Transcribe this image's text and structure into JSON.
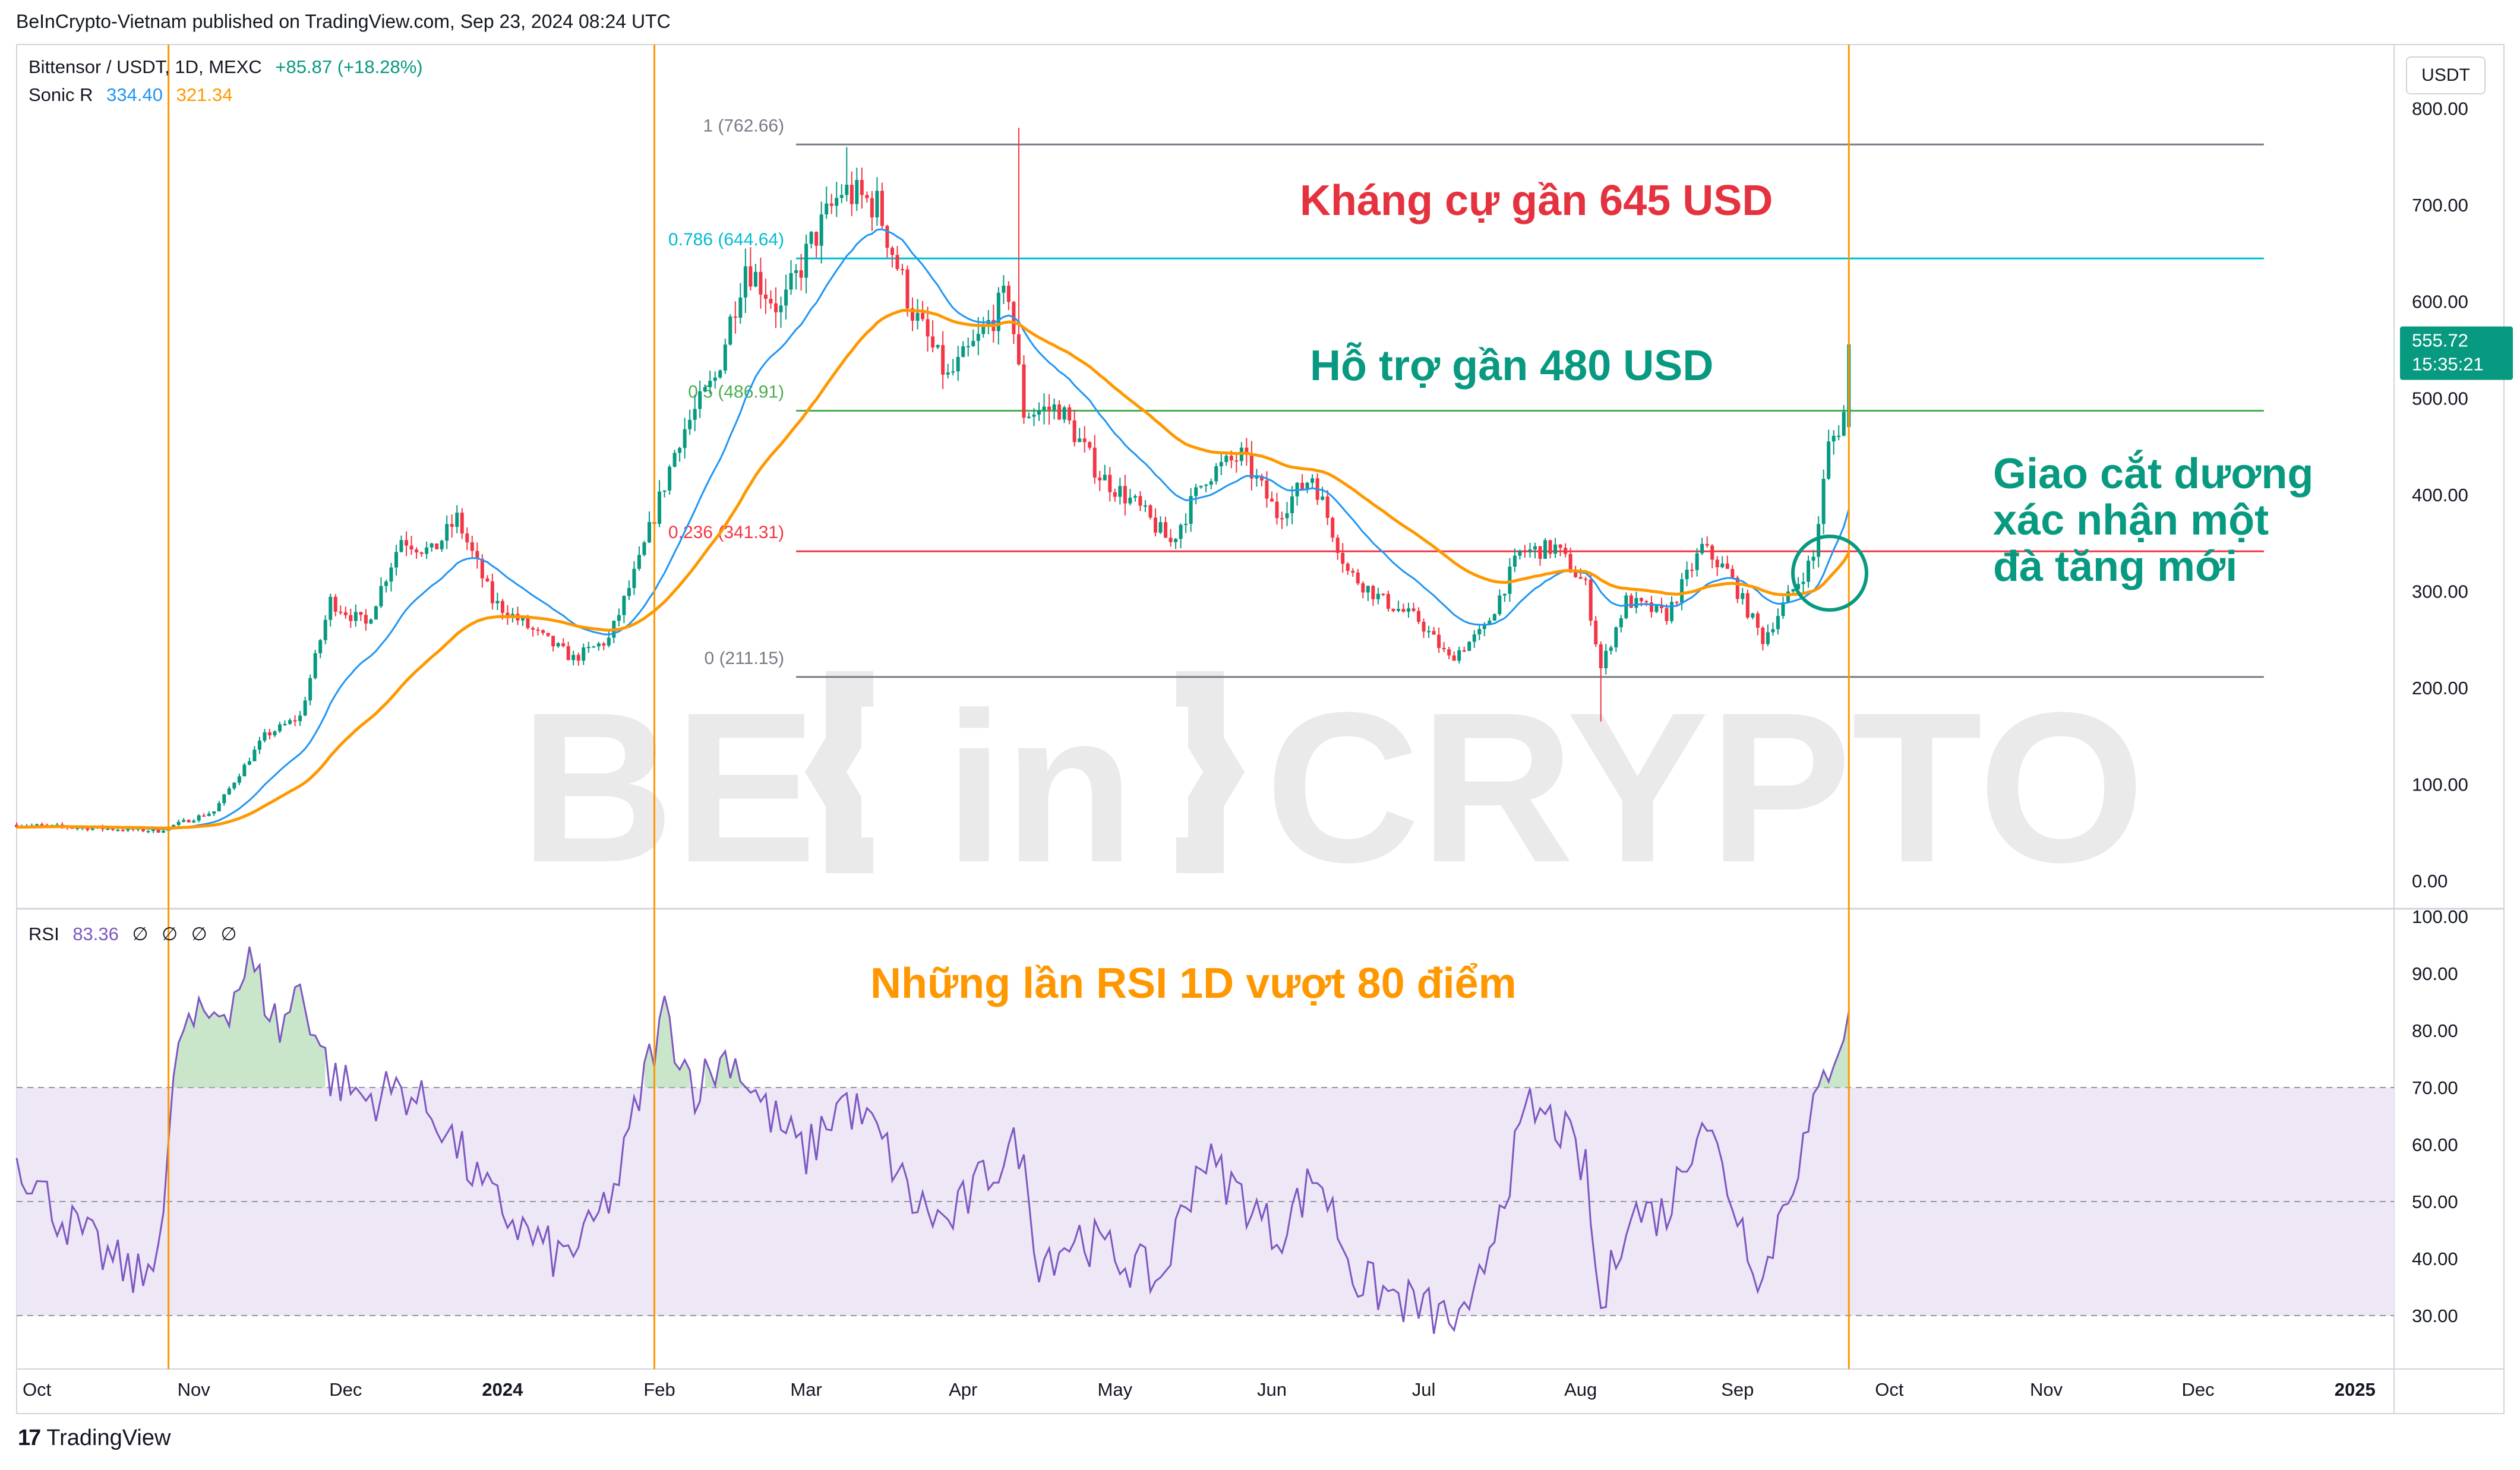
{
  "header": {
    "published": "BeInCrypto-Vietnam published on TradingView.com, Sep 23, 2024 08:24 UTC"
  },
  "legend": {
    "symbol": "Bittensor / USDT, 1D, MEXC",
    "change": "+85.87 (+18.28%)",
    "indicator_name": "Sonic R",
    "indicator_value_1": "334.40",
    "indicator_value_2": "321.34",
    "rsi_name": "RSI",
    "rsi_value": "83.36",
    "rsi_extras": [
      "∅",
      "∅",
      "∅",
      "∅"
    ]
  },
  "watermark": {
    "left": "BE",
    "middle": "in",
    "right": "CRYPTO"
  },
  "price_axis": {
    "unit": "USDT",
    "ticks": [
      "800.00",
      "700.00",
      "600.00",
      "500.00",
      "400.00",
      "300.00",
      "200.00",
      "100.00",
      "0.00"
    ],
    "last_price": "555.72",
    "countdown": "15:35:21"
  },
  "rsi_axis": {
    "ticks": [
      "100.00",
      "90.00",
      "80.00",
      "70.00",
      "60.00",
      "50.00",
      "40.00",
      "30.00"
    ]
  },
  "time_axis": {
    "labels": [
      {
        "text": "Oct",
        "bold": false
      },
      {
        "text": "Nov",
        "bold": false
      },
      {
        "text": "Dec",
        "bold": false
      },
      {
        "text": "2024",
        "bold": true
      },
      {
        "text": "Feb",
        "bold": false
      },
      {
        "text": "Mar",
        "bold": false
      },
      {
        "text": "Apr",
        "bold": false
      },
      {
        "text": "May",
        "bold": false
      },
      {
        "text": "Jun",
        "bold": false
      },
      {
        "text": "Jul",
        "bold": false
      },
      {
        "text": "Aug",
        "bold": false
      },
      {
        "text": "Sep",
        "bold": false
      },
      {
        "text": "Oct",
        "bold": false
      },
      {
        "text": "Nov",
        "bold": false
      },
      {
        "text": "Dec",
        "bold": false
      },
      {
        "text": "2025",
        "bold": true
      }
    ]
  },
  "annotations": {
    "resistance": "Kháng cự gần 645 USD",
    "support": "Hỗ trợ gần 480 USD",
    "cross_line1": "Giao cắt dương",
    "cross_line2": "xác nhận một",
    "cross_line3": "đà tăng mới",
    "rsi_note": "Những lần RSI 1D vượt 80 điểm"
  },
  "footer": {
    "brand": "TradingView"
  },
  "colors": {
    "up": "#089981",
    "down": "#f23645",
    "ema_fast": "#2196f3",
    "ema_slow": "#ff9800",
    "rsi_line": "#7e57c2",
    "rsi_band": "#ede7f6",
    "fib_0786": "#00bcd4",
    "fib_05": "#4caf50",
    "fib_0236": "#f23645",
    "fib_gray": "#787b86",
    "resistance_text": "#e5323f",
    "support_text": "#089981",
    "rsi_note_text": "#ff9800",
    "vline": "#ff9800"
  },
  "chart_data": {
    "type": "candlestick",
    "title": "Bittensor / USDT, 1D, MEXC",
    "ylim": [
      0,
      830
    ],
    "rsi_ylim": [
      25,
      100
    ],
    "rsi_bands": [
      30,
      70
    ],
    "rsi_mid": 50,
    "fib_levels": [
      {
        "label": "1 (762.66)",
        "value": 762.66,
        "color": "#787b86"
      },
      {
        "label": "0.786 (644.64)",
        "value": 644.64,
        "color": "#00bcd4"
      },
      {
        "label": "0.5 (486.91)",
        "value": 486.91,
        "color": "#4caf50"
      },
      {
        "label": "0.236 (341.31)",
        "value": 341.31,
        "color": "#f23645"
      },
      {
        "label": "0 (211.15)",
        "value": 211.15,
        "color": "#787b86"
      }
    ],
    "anchor_dates": [
      "2023-10-27",
      "2024-01-31",
      "2024-09-23"
    ],
    "price_waypoints": [
      [
        "2023-09-27",
        58
      ],
      [
        "2023-10-10",
        55
      ],
      [
        "2023-10-25",
        52
      ],
      [
        "2023-11-05",
        72
      ],
      [
        "2023-11-15",
        150
      ],
      [
        "2023-11-22",
        170
      ],
      [
        "2023-11-28",
        290
      ],
      [
        "2023-12-05",
        265
      ],
      [
        "2023-12-12",
        355
      ],
      [
        "2023-12-18",
        340
      ],
      [
        "2023-12-23",
        375
      ],
      [
        "2023-12-30",
        290
      ],
      [
        "2024-01-08",
        255
      ],
      [
        "2024-01-15",
        230
      ],
      [
        "2024-01-22",
        250
      ],
      [
        "2024-01-28",
        330
      ],
      [
        "2024-02-05",
        460
      ],
      [
        "2024-02-12",
        520
      ],
      [
        "2024-02-18",
        640
      ],
      [
        "2024-02-25",
        590
      ],
      [
        "2024-03-02",
        660
      ],
      [
        "2024-03-08",
        715
      ],
      [
        "2024-03-15",
        700
      ],
      [
        "2024-03-22",
        590
      ],
      [
        "2024-03-29",
        520
      ],
      [
        "2024-04-04",
        560
      ],
      [
        "2024-04-10",
        610
      ],
      [
        "2024-04-13",
        485
      ],
      [
        "2024-04-20",
        490
      ],
      [
        "2024-04-28",
        420
      ],
      [
        "2024-05-05",
        390
      ],
      [
        "2024-05-12",
        350
      ],
      [
        "2024-05-19",
        420
      ],
      [
        "2024-05-26",
        440
      ],
      [
        "2024-06-02",
        380
      ],
      [
        "2024-06-09",
        420
      ],
      [
        "2024-06-16",
        320
      ],
      [
        "2024-06-23",
        290
      ],
      [
        "2024-06-30",
        270
      ],
      [
        "2024-07-06",
        230
      ],
      [
        "2024-07-13",
        260
      ],
      [
        "2024-07-20",
        340
      ],
      [
        "2024-07-27",
        345
      ],
      [
        "2024-08-02",
        305
      ],
      [
        "2024-08-05",
        220
      ],
      [
        "2024-08-10",
        290
      ],
      [
        "2024-08-18",
        275
      ],
      [
        "2024-08-25",
        345
      ],
      [
        "2024-08-30",
        320
      ],
      [
        "2024-09-06",
        250
      ],
      [
        "2024-09-10",
        285
      ],
      [
        "2024-09-16",
        335
      ],
      [
        "2024-09-19",
        450
      ],
      [
        "2024-09-21",
        470
      ],
      [
        "2024-09-22",
        485
      ],
      [
        "2024-09-23",
        555.72
      ]
    ],
    "rsi_waypoints": [
      [
        "2023-09-27",
        58
      ],
      [
        "2023-10-05",
        48
      ],
      [
        "2023-10-15",
        40
      ],
      [
        "2023-10-22",
        36
      ],
      [
        "2023-10-26",
        48
      ],
      [
        "2023-10-29",
        79
      ],
      [
        "2023-11-08",
        85
      ],
      [
        "2023-11-12",
        92
      ],
      [
        "2023-11-18",
        80
      ],
      [
        "2023-11-22",
        88
      ],
      [
        "2023-11-28",
        72
      ],
      [
        "2023-12-05",
        68
      ],
      [
        "2023-12-12",
        70
      ],
      [
        "2023-12-20",
        64
      ],
      [
        "2023-12-28",
        52
      ],
      [
        "2024-01-05",
        45
      ],
      [
        "2024-01-12",
        40
      ],
      [
        "2024-01-18",
        44
      ],
      [
        "2024-01-24",
        54
      ],
      [
        "2024-01-29",
        72
      ],
      [
        "2024-02-02",
        83
      ],
      [
        "2024-02-08",
        70
      ],
      [
        "2024-02-15",
        76
      ],
      [
        "2024-02-22",
        66
      ],
      [
        "2024-03-01",
        58
      ],
      [
        "2024-03-08",
        68
      ],
      [
        "2024-03-15",
        62
      ],
      [
        "2024-03-22",
        50
      ],
      [
        "2024-03-29",
        46
      ],
      [
        "2024-04-06",
        55
      ],
      [
        "2024-04-12",
        60
      ],
      [
        "2024-04-16",
        40
      ],
      [
        "2024-04-24",
        44
      ],
      [
        "2024-05-02",
        40
      ],
      [
        "2024-05-10",
        36
      ],
      [
        "2024-05-18",
        58
      ],
      [
        "2024-05-25",
        52
      ],
      [
        "2024-06-02",
        44
      ],
      [
        "2024-06-10",
        55
      ],
      [
        "2024-06-18",
        36
      ],
      [
        "2024-06-26",
        33
      ],
      [
        "2024-07-04",
        30
      ],
      [
        "2024-07-10",
        28
      ],
      [
        "2024-07-16",
        50
      ],
      [
        "2024-07-22",
        66
      ],
      [
        "2024-07-28",
        63
      ],
      [
        "2024-08-02",
        55
      ],
      [
        "2024-08-05",
        30
      ],
      [
        "2024-08-10",
        48
      ],
      [
        "2024-08-18",
        48
      ],
      [
        "2024-08-25",
        66
      ],
      [
        "2024-09-01",
        48
      ],
      [
        "2024-09-06",
        36
      ],
      [
        "2024-09-10",
        50
      ],
      [
        "2024-09-15",
        62
      ],
      [
        "2024-09-19",
        74
      ],
      [
        "2024-09-23",
        83.36
      ]
    ]
  }
}
